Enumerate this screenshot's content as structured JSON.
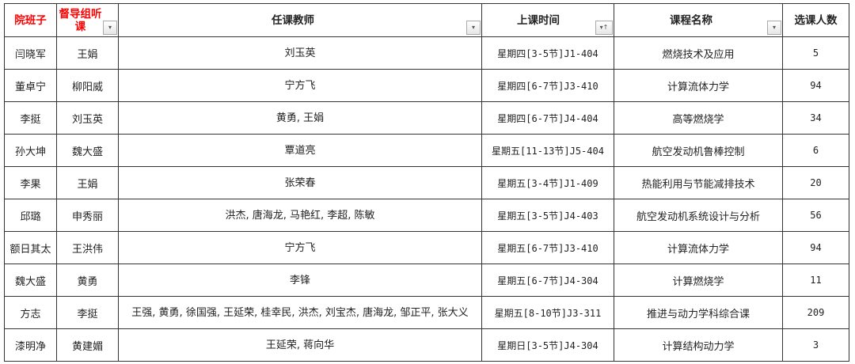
{
  "headers": [
    "院班子",
    "督导组听课",
    "任课教师",
    "上课时间",
    "课程名称",
    "选课人数"
  ],
  "header_colors": {
    "highlight": "#ff0000",
    "normal": "#222222"
  },
  "filter_icons": {
    "dropdown": "▾",
    "sorted": "▾↑"
  },
  "rows": [
    [
      "闫晓军",
      "王娟",
      "刘玉英",
      "星期四[3-5节]J1-404",
      "燃烧技术及应用",
      "5"
    ],
    [
      "董卓宁",
      "柳阳威",
      "宁方飞",
      "星期四[6-7节]J3-410",
      "计算流体力学",
      "94"
    ],
    [
      "李挺",
      "刘玉英",
      "黄勇, 王娟",
      "星期四[6-7节]J4-404",
      "高等燃烧学",
      "34"
    ],
    [
      "孙大坤",
      "魏大盛",
      "覃道亮",
      "星期五[11-13节]J5-404",
      "航空发动机鲁棒控制",
      "6"
    ],
    [
      "李果",
      "王娟",
      "张荣春",
      "星期五[3-4节]J1-409",
      "热能利用与节能减排技术",
      "20"
    ],
    [
      "邱璐",
      "申秀丽",
      "洪杰, 唐海龙, 马艳红, 李超, 陈敏",
      "星期五[3-5节]J4-403",
      "航空发动机系统设计与分析",
      "56"
    ],
    [
      "额日其太",
      "王洪伟",
      "宁方飞",
      "星期五[6-7节]J3-410",
      "计算流体力学",
      "94"
    ],
    [
      "魏大盛",
      "黄勇",
      "李锋",
      "星期五[6-7节]J4-304",
      "计算燃烧学",
      "11"
    ],
    [
      "方志",
      "李挺",
      "王强, 黄勇, 徐国强, 王延荣, 桂幸民, 洪杰, 刘宝杰, 唐海龙, 邹正平, 张大义",
      "星期五[8-10节]J3-311",
      "推进与动力学科综合课",
      "209"
    ],
    [
      "漆明净",
      "黄建媚",
      "王延荣, 蒋向华",
      "星期日[3-5节]J4-304",
      "计算结构动力学",
      "3"
    ]
  ]
}
